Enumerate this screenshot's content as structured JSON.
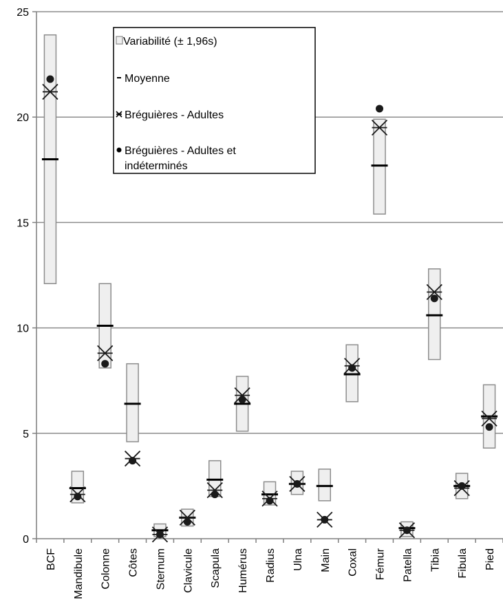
{
  "chart_data": {
    "type": "box-range",
    "categories": [
      "BCF",
      "Mandibule",
      "Colonne",
      "Côtes",
      "Sternum",
      "Clavicule",
      "Scapula",
      "Humérus",
      "Radius",
      "Ulna",
      "Main",
      "Coxal",
      "Fémur",
      "Patella",
      "Tibia",
      "Fibula",
      "Pied"
    ],
    "yticks": [
      "0",
      "5",
      "10",
      "15",
      "20",
      "25"
    ],
    "ylim": [
      0,
      25
    ],
    "grid": true,
    "legend_position": "top-center",
    "series": [
      {
        "name": "Variabilité (± 1,96s)",
        "kind": "range",
        "low": [
          12.1,
          1.7,
          8.1,
          4.6,
          0.1,
          0.6,
          2.0,
          5.1,
          1.6,
          2.1,
          1.8,
          6.5,
          15.4,
          0.1,
          8.5,
          1.9,
          4.3
        ],
        "high": [
          23.9,
          3.2,
          12.1,
          8.3,
          0.7,
          1.4,
          3.7,
          7.7,
          2.7,
          3.2,
          3.3,
          9.2,
          19.9,
          0.8,
          12.8,
          3.1,
          7.3
        ]
      },
      {
        "name": "Moyenne",
        "kind": "dash",
        "values": [
          18.0,
          2.4,
          10.1,
          6.4,
          0.4,
          1.0,
          2.8,
          6.4,
          2.1,
          2.6,
          2.5,
          7.8,
          17.7,
          0.5,
          10.6,
          2.5,
          5.8
        ]
      },
      {
        "name": "Bréguières - Adultes",
        "kind": "star",
        "values": [
          21.2,
          2.1,
          8.8,
          3.8,
          0.2,
          1.0,
          2.3,
          6.8,
          1.9,
          2.6,
          0.9,
          8.2,
          19.5,
          0.4,
          11.7,
          2.4,
          5.7
        ]
      },
      {
        "name": "Bréguières - Adultes et indéterminés",
        "kind": "dot",
        "values": [
          21.8,
          2.0,
          8.3,
          3.7,
          0.2,
          0.8,
          2.1,
          6.6,
          1.8,
          2.6,
          0.9,
          8.1,
          20.4,
          0.4,
          11.4,
          2.5,
          5.3
        ]
      }
    ]
  },
  "legend": {
    "items": [
      {
        "label": "Variabilité (± 1,96s)"
      },
      {
        "label": "Moyenne"
      },
      {
        "label": "Bréguières - Adultes"
      },
      {
        "label": "Bréguières - Adultes et",
        "label2": "indéterminés"
      }
    ]
  },
  "colors": {
    "box_fill": "#efefef",
    "box_stroke": "#8c8c8c",
    "grid": "#8c8c8c",
    "axis": "#7f7f7f",
    "marker": "#1a1a1a"
  }
}
